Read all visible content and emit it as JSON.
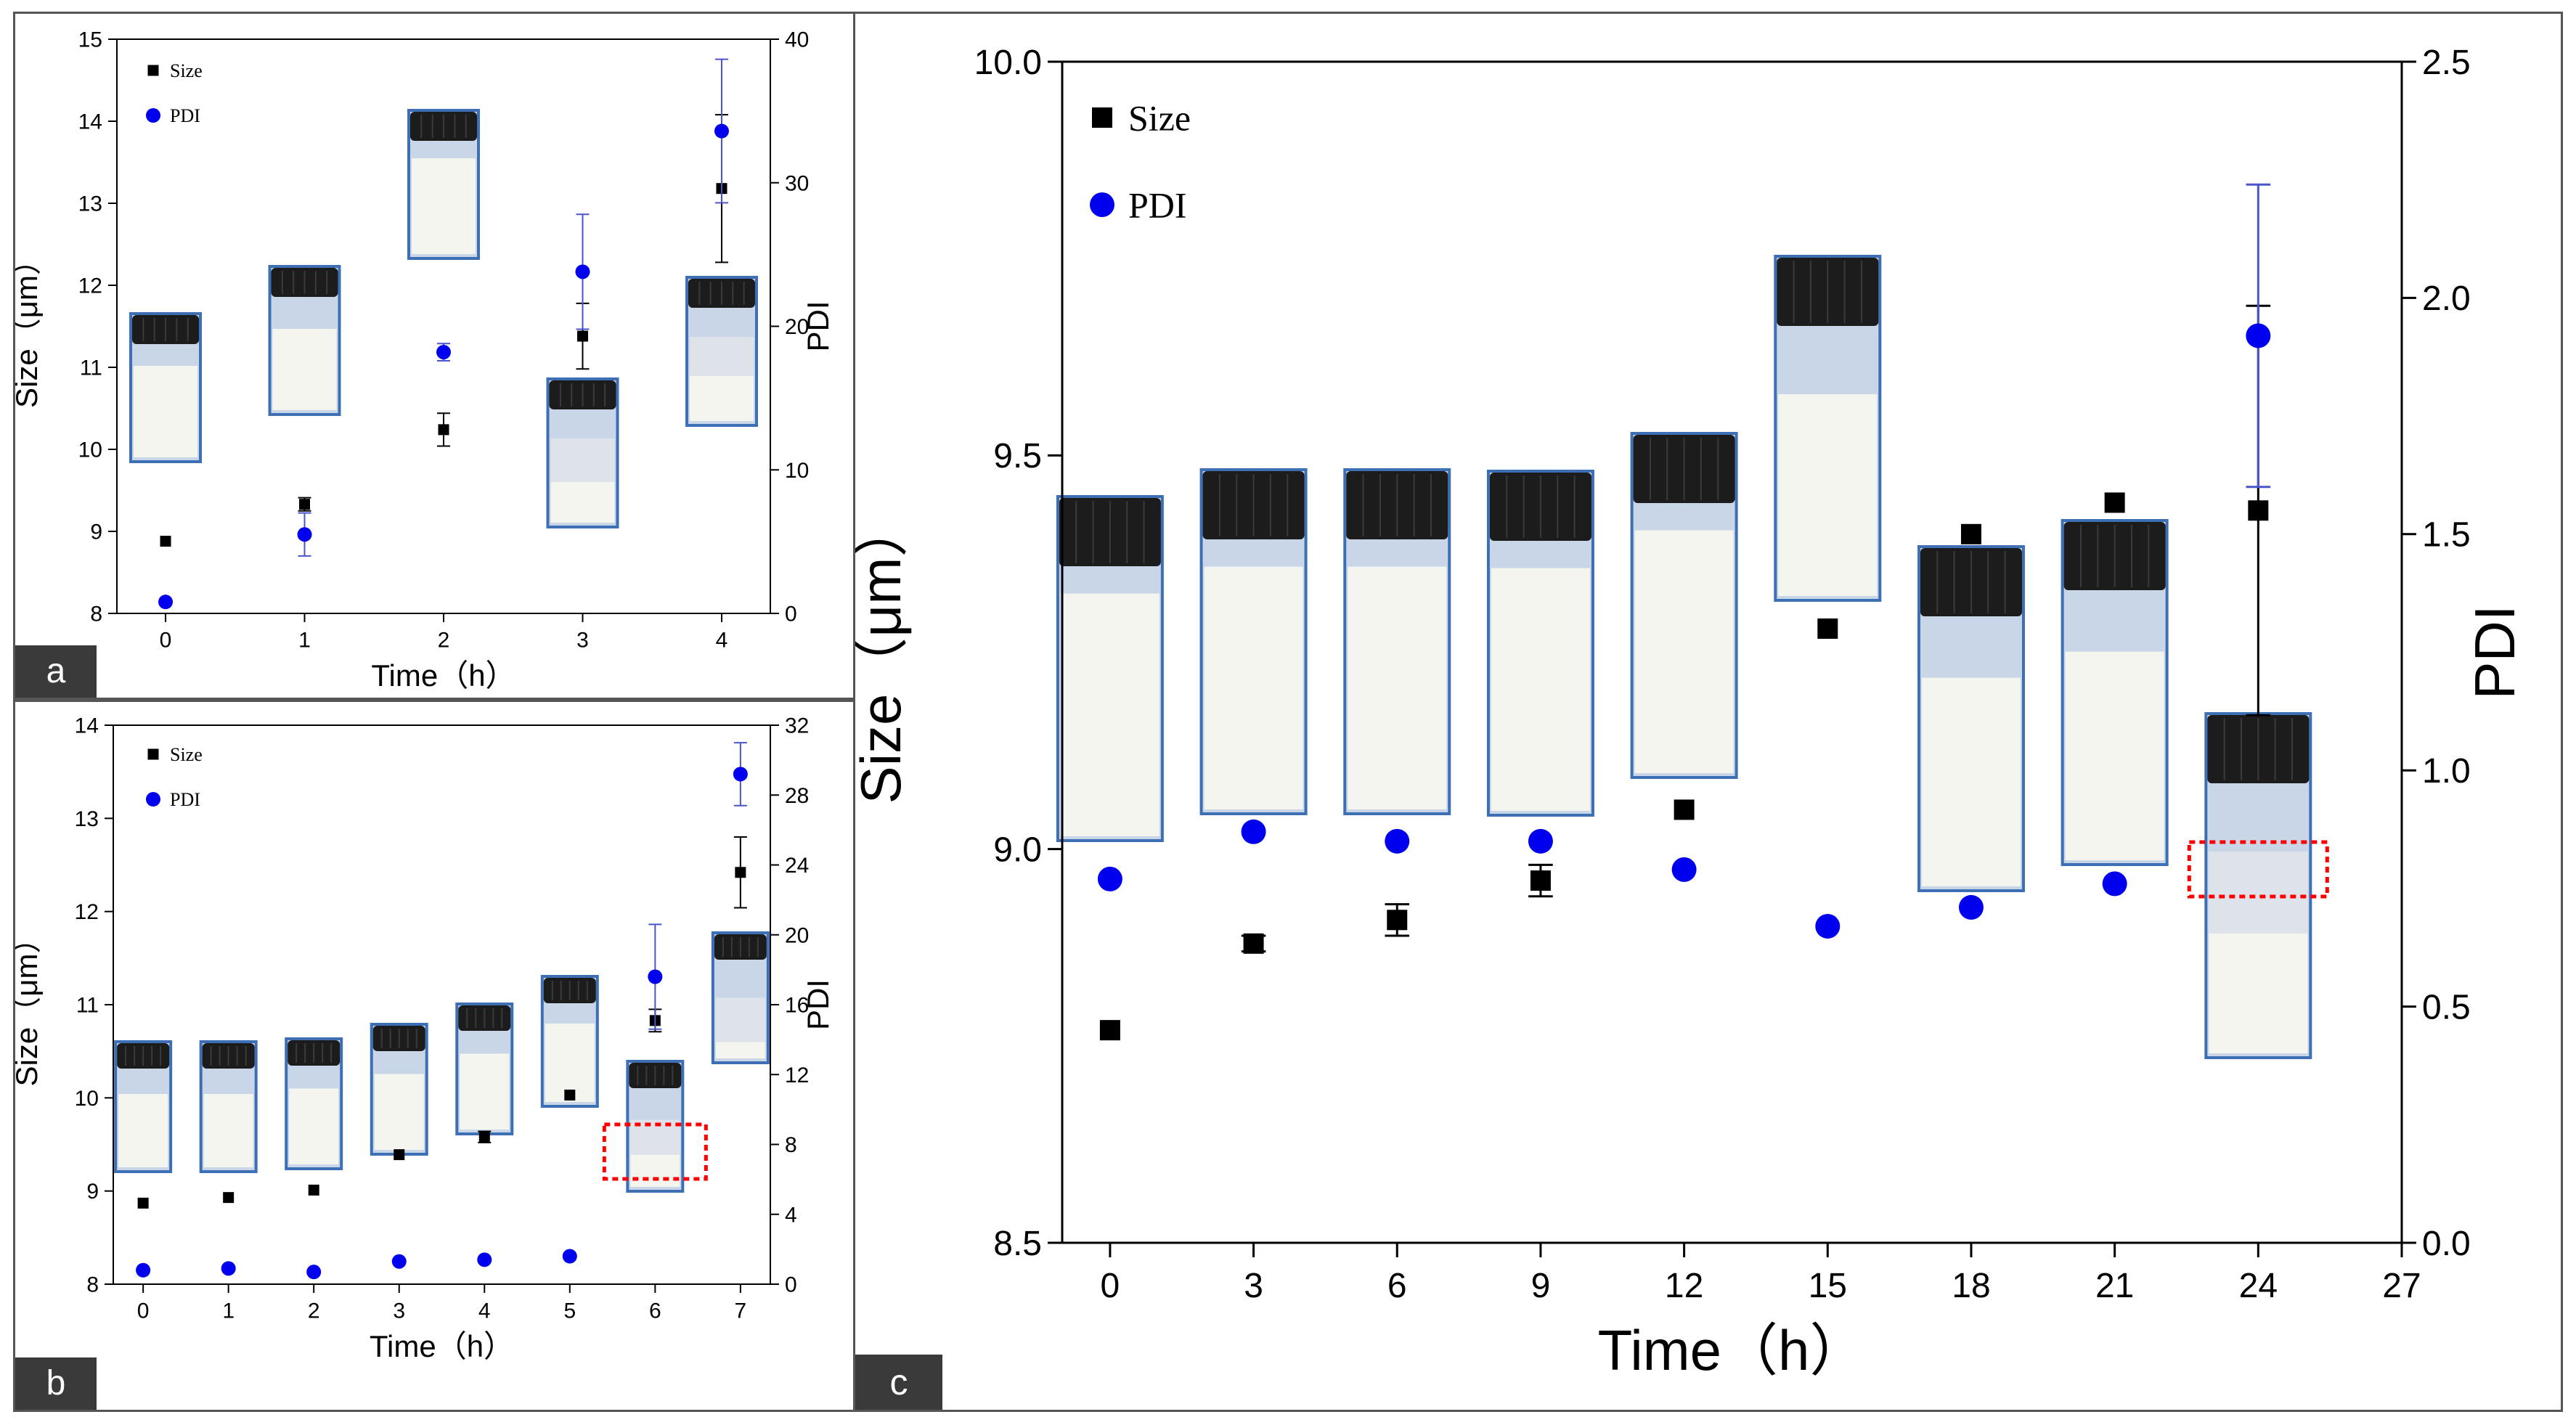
{
  "colors": {
    "size": "#000000",
    "pdi": "#0000ee",
    "pdi_error": "#4a55cc",
    "highlight": "#ff0000",
    "frame": "#555555",
    "label_bg": "#3a3a3a"
  },
  "chart_data": [
    {
      "panel": "a",
      "type": "scatter",
      "xlabel": "Time（h）",
      "ylabel": "Size（μm）",
      "y2label": "PDI",
      "x_ticks": [
        0,
        1,
        2,
        3,
        4
      ],
      "xlim": [
        -0.35,
        4.35
      ],
      "ylim": [
        8,
        15
      ],
      "y_ticks": [
        8,
        9,
        10,
        11,
        12,
        13,
        14,
        15
      ],
      "y2lim": [
        0,
        40
      ],
      "y2_ticks": [
        0,
        10,
        20,
        30,
        40
      ],
      "legend_position": "top-left",
      "series": [
        {
          "name": "Size",
          "marker": "square",
          "axis": "left",
          "x": [
            0,
            1,
            2,
            3,
            4
          ],
          "y": [
            8.88,
            9.33,
            10.24,
            11.38,
            13.18
          ],
          "err": [
            0,
            0.08,
            0.2,
            0.4,
            0.9
          ]
        },
        {
          "name": "PDI",
          "marker": "circle",
          "axis": "right",
          "x": [
            0,
            1,
            2,
            3,
            4
          ],
          "y": [
            0.8,
            5.5,
            18.2,
            23.8,
            33.6
          ],
          "err": [
            0,
            1.5,
            0.6,
            4.0,
            5.0
          ]
        }
      ],
      "vials": [
        {
          "x": 0,
          "liquid_frac": 0.65,
          "separation_frac": null
        },
        {
          "x": 1,
          "liquid_frac": 0.58,
          "separation_frac": null
        },
        {
          "x": 2,
          "liquid_frac": 0.68,
          "separation_frac": null
        },
        {
          "x": 3,
          "liquid_frac": 0.6,
          "separation_frac": 0.5
        },
        {
          "x": 4,
          "liquid_frac": 0.6,
          "separation_frac": 0.55
        }
      ]
    },
    {
      "panel": "b",
      "type": "scatter",
      "xlabel": "Time（h）",
      "ylabel": "Size（μm）",
      "y2label": "PDI",
      "x_ticks": [
        0,
        1,
        2,
        3,
        4,
        5,
        6,
        7
      ],
      "xlim": [
        -0.35,
        7.35
      ],
      "ylim": [
        8,
        14
      ],
      "y_ticks": [
        8,
        9,
        10,
        11,
        12,
        13,
        14
      ],
      "y2lim": [
        0,
        32
      ],
      "y2_ticks": [
        0,
        4,
        8,
        12,
        16,
        20,
        24,
        28,
        32
      ],
      "legend_position": "top-left",
      "series": [
        {
          "name": "Size",
          "marker": "square",
          "axis": "left",
          "x": [
            0,
            1,
            2,
            3,
            4,
            5,
            6,
            7
          ],
          "y": [
            8.87,
            8.93,
            9.01,
            9.39,
            9.58,
            10.03,
            10.83,
            12.42
          ],
          "err": [
            0,
            0,
            0,
            0,
            0.06,
            0,
            0.12,
            0.38
          ]
        },
        {
          "name": "PDI",
          "marker": "circle",
          "axis": "right",
          "x": [
            0,
            1,
            2,
            3,
            4,
            5,
            6,
            7
          ],
          "y": [
            0.8,
            0.9,
            0.7,
            1.3,
            1.4,
            1.6,
            17.6,
            29.2
          ],
          "err": [
            0,
            0,
            0,
            0,
            0,
            0,
            3.0,
            1.8
          ]
        }
      ],
      "vials": [
        {
          "x": 0,
          "liquid_frac": 0.6,
          "separation_frac": null
        },
        {
          "x": 1,
          "liquid_frac": 0.6,
          "separation_frac": null
        },
        {
          "x": 2,
          "liquid_frac": 0.62,
          "separation_frac": null
        },
        {
          "x": 3,
          "liquid_frac": 0.62,
          "separation_frac": null
        },
        {
          "x": 4,
          "liquid_frac": 0.62,
          "separation_frac": null
        },
        {
          "x": 5,
          "liquid_frac": 0.64,
          "separation_frac": null
        },
        {
          "x": 6,
          "liquid_frac": 0.55,
          "separation_frac": 0.5,
          "highlighted": true
        },
        {
          "x": 7,
          "liquid_frac": 0.5,
          "separation_frac": 0.3
        }
      ]
    },
    {
      "panel": "c",
      "type": "scatter",
      "xlabel": "Time（h）",
      "ylabel": "Size（μm）",
      "y2label": "PDI",
      "x_ticks": [
        0,
        3,
        6,
        9,
        12,
        15,
        18,
        21,
        24,
        27
      ],
      "xlim": [
        -1.0,
        27
      ],
      "ylim": [
        8.5,
        10.0
      ],
      "y_ticks": [
        "8.5",
        "9.0",
        "9.5",
        "10.0"
      ],
      "y2lim": [
        0,
        2.5
      ],
      "y2_ticks": [
        "0.0",
        "0.5",
        "1.0",
        "1.5",
        "2.0",
        "2.5"
      ],
      "legend_position": "top-left",
      "series": [
        {
          "name": "Size",
          "marker": "square",
          "axis": "left",
          "x": [
            0,
            3,
            6,
            9,
            12,
            15,
            18,
            21,
            24
          ],
          "y": [
            8.77,
            8.88,
            8.91,
            8.96,
            9.05,
            9.28,
            9.4,
            9.44,
            9.43
          ],
          "err": [
            0,
            0.01,
            0.02,
            0.02,
            0,
            0,
            0,
            0,
            0.26
          ]
        },
        {
          "name": "PDI",
          "marker": "circle",
          "axis": "right",
          "x": [
            0,
            3,
            6,
            9,
            12,
            15,
            18,
            21,
            24
          ],
          "y": [
            0.77,
            0.87,
            0.85,
            0.85,
            0.79,
            0.67,
            0.71,
            0.76,
            1.92
          ],
          "err": [
            0,
            0,
            0,
            0,
            0,
            0,
            0,
            0,
            0.32
          ]
        }
      ],
      "vials": [
        {
          "x": 0,
          "liquid_frac": 0.72,
          "separation_frac": null
        },
        {
          "x": 3,
          "liquid_frac": 0.72,
          "separation_frac": null
        },
        {
          "x": 6,
          "liquid_frac": 0.72,
          "separation_frac": null
        },
        {
          "x": 9,
          "liquid_frac": 0.72,
          "separation_frac": null
        },
        {
          "x": 12,
          "liquid_frac": 0.72,
          "separation_frac": null
        },
        {
          "x": 15,
          "liquid_frac": 0.6,
          "separation_frac": null
        },
        {
          "x": 18,
          "liquid_frac": 0.62,
          "separation_frac": null
        },
        {
          "x": 21,
          "liquid_frac": 0.62,
          "separation_frac": null
        },
        {
          "x": 24,
          "liquid_frac": 0.6,
          "separation_frac": 0.6,
          "highlighted": true
        }
      ]
    }
  ],
  "panels": {
    "a": {
      "label": "a"
    },
    "b": {
      "label": "b"
    },
    "c": {
      "label": "c"
    }
  }
}
